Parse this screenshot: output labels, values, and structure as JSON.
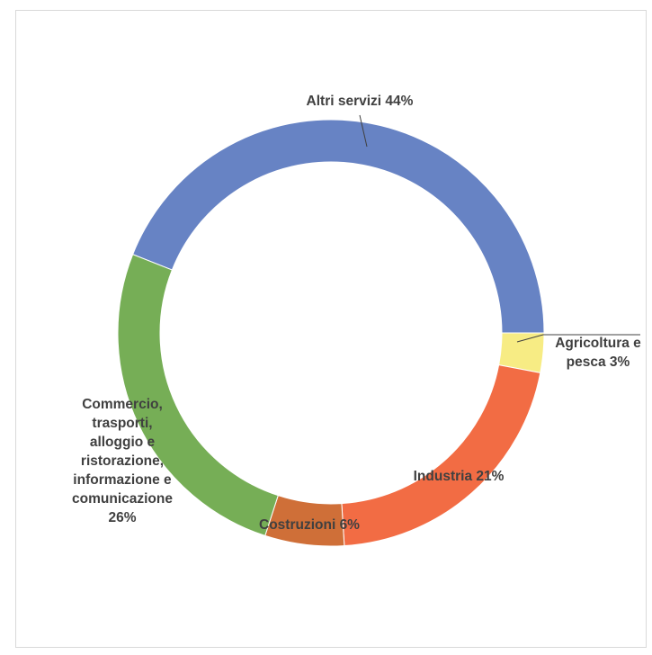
{
  "chart_data": {
    "type": "pie",
    "variant": "donut",
    "title": "",
    "legend": false,
    "slices": [
      {
        "label": "Altri servizi",
        "value": 44,
        "display": "44%",
        "color": "#6783c4"
      },
      {
        "label": "Agricoltura e pesca",
        "value": 3,
        "display": "3%",
        "color": "#f7ec84"
      },
      {
        "label": "Industria",
        "value": 21,
        "display": "21%",
        "color": "#f26c44"
      },
      {
        "label": "Costruzioni",
        "value": 6,
        "display": "6%",
        "color": "#cf6f38"
      },
      {
        "label": "Commercio, trasporti, alloggio e ristorazione, informazione e comunicazione",
        "value": 26,
        "display": "26%",
        "color": "#76ae56"
      }
    ],
    "labels_text": [
      [
        "Altri servizi 44%"
      ],
      [
        "Agricoltura e",
        "pesca 3%"
      ],
      [
        "Industria 21%"
      ],
      [
        "Costruzioni 6%"
      ],
      [
        "Commercio,",
        "trasporti,",
        "alloggio e",
        "ristorazione,",
        "informazione e",
        "comunicazione",
        "26%"
      ]
    ]
  }
}
